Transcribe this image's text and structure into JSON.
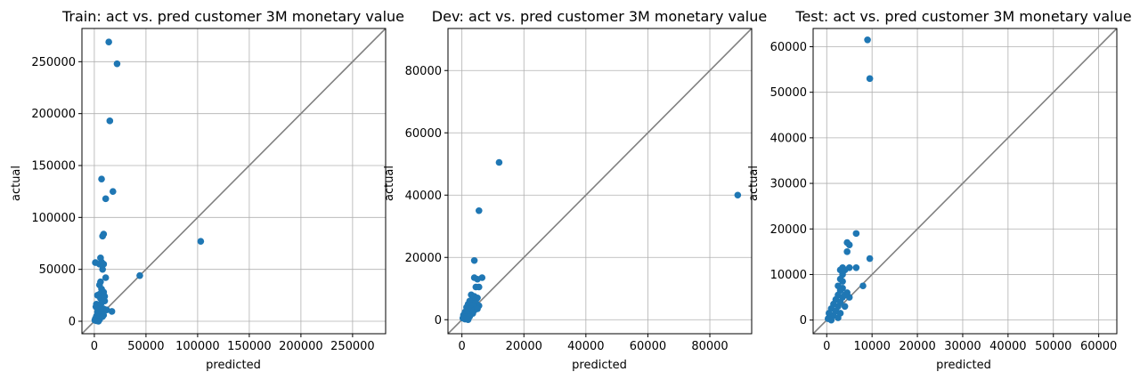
{
  "chart_data": [
    {
      "type": "scatter",
      "title": "Train: act vs. pred customer 3M monetary value",
      "xlabel": "predicted",
      "ylabel": "actual",
      "xlim": [
        -12000,
        282000
      ],
      "ylim": [
        -12000,
        282000
      ],
      "xticks": [
        0,
        50000,
        100000,
        150000,
        200000,
        250000
      ],
      "yticks": [
        0,
        50000,
        100000,
        150000,
        200000,
        250000
      ],
      "xtick_labels": [
        "0",
        "50000",
        "100000",
        "150000",
        "200000",
        "250000"
      ],
      "ytick_labels": [
        "0",
        "50000",
        "100000",
        "150000",
        "200000",
        "250000"
      ],
      "grid": true,
      "reference_line": "y = x",
      "color": "#1f77b4",
      "points": [
        [
          14000,
          269000
        ],
        [
          22000,
          248000
        ],
        [
          15000,
          193000
        ],
        [
          7000,
          137000
        ],
        [
          18000,
          125000
        ],
        [
          11000,
          118000
        ],
        [
          9000,
          84000
        ],
        [
          8000,
          82000
        ],
        [
          103000,
          77000
        ],
        [
          6000,
          61000
        ],
        [
          1000,
          56500
        ],
        [
          7000,
          57000
        ],
        [
          8000,
          55500
        ],
        [
          5000,
          55000
        ],
        [
          9000,
          55000
        ],
        [
          8000,
          50000
        ],
        [
          44000,
          44000
        ],
        [
          11000,
          42000
        ],
        [
          6000,
          38000
        ],
        [
          5000,
          35000
        ],
        [
          7000,
          31000
        ],
        [
          9000,
          28000
        ],
        [
          5000,
          26000
        ],
        [
          3000,
          25000
        ],
        [
          6000,
          22000
        ],
        [
          8000,
          20000
        ],
        [
          10000,
          19500
        ],
        [
          2000,
          16500
        ],
        [
          4000,
          15000
        ],
        [
          6000,
          13000
        ],
        [
          9000,
          12000
        ],
        [
          12000,
          11000
        ],
        [
          17000,
          9500
        ],
        [
          3000,
          9000
        ],
        [
          5000,
          8000
        ],
        [
          7000,
          7000
        ],
        [
          9000,
          6000
        ],
        [
          2000,
          5000
        ],
        [
          4000,
          4000
        ],
        [
          6000,
          3500
        ],
        [
          1000,
          2500
        ],
        [
          3000,
          2000
        ],
        [
          5000,
          1500
        ],
        [
          500,
          1000
        ],
        [
          2000,
          500
        ],
        [
          4000,
          0
        ],
        [
          8000,
          4500
        ],
        [
          1500,
          14000
        ],
        [
          6500,
          17000
        ],
        [
          10000,
          24000
        ]
      ]
    },
    {
      "type": "scatter",
      "title": "Dev: act vs. pred customer 3M monetary value",
      "xlabel": "predicted",
      "ylabel": "actual",
      "xlim": [
        -4500,
        93500
      ],
      "ylim": [
        -4500,
        93500
      ],
      "xticks": [
        0,
        20000,
        40000,
        60000,
        80000
      ],
      "yticks": [
        0,
        20000,
        40000,
        60000,
        80000
      ],
      "xtick_labels": [
        "0",
        "20000",
        "40000",
        "60000",
        "80000"
      ],
      "ytick_labels": [
        "0",
        "20000",
        "40000",
        "60000",
        "80000"
      ],
      "grid": true,
      "reference_line": "y = x",
      "color": "#1f77b4",
      "points": [
        [
          12000,
          50500
        ],
        [
          5500,
          35000
        ],
        [
          89000,
          40000
        ],
        [
          4000,
          19000
        ],
        [
          4000,
          13500
        ],
        [
          6500,
          13500
        ],
        [
          5000,
          13000
        ],
        [
          4500,
          10500
        ],
        [
          5500,
          10500
        ],
        [
          3000,
          8000
        ],
        [
          4000,
          7500
        ],
        [
          5000,
          7000
        ],
        [
          3500,
          6500
        ],
        [
          2500,
          6000
        ],
        [
          4500,
          5500
        ],
        [
          2000,
          5000
        ],
        [
          3500,
          4500
        ],
        [
          5500,
          4500
        ],
        [
          1500,
          4000
        ],
        [
          3000,
          3500
        ],
        [
          2500,
          3000
        ],
        [
          4000,
          3000
        ],
        [
          1000,
          2500
        ],
        [
          2000,
          2000
        ],
        [
          3500,
          2000
        ],
        [
          500,
          1500
        ],
        [
          1500,
          1000
        ],
        [
          2500,
          1000
        ],
        [
          300,
          500
        ],
        [
          1000,
          200
        ],
        [
          2000,
          0
        ],
        [
          5000,
          3500
        ]
      ]
    },
    {
      "type": "scatter",
      "title": "Test: act vs. pred customer 3M monetary value",
      "xlabel": "predicted",
      "ylabel": "actual",
      "xlim": [
        -3000,
        64000
      ],
      "ylim": [
        -3000,
        64000
      ],
      "xticks": [
        0,
        10000,
        20000,
        30000,
        40000,
        50000,
        60000
      ],
      "yticks": [
        0,
        10000,
        20000,
        30000,
        40000,
        50000,
        60000
      ],
      "xtick_labels": [
        "0",
        "10000",
        "20000",
        "30000",
        "40000",
        "50000",
        "60000"
      ],
      "ytick_labels": [
        "0",
        "10000",
        "20000",
        "30000",
        "40000",
        "50000",
        "60000"
      ],
      "grid": true,
      "reference_line": "y = x",
      "color": "#1f77b4",
      "points": [
        [
          9000,
          61500
        ],
        [
          9500,
          53000
        ],
        [
          6500,
          19000
        ],
        [
          4500,
          17000
        ],
        [
          5000,
          16500
        ],
        [
          4500,
          15000
        ],
        [
          9500,
          13500
        ],
        [
          3500,
          11500
        ],
        [
          5000,
          11500
        ],
        [
          6500,
          11500
        ],
        [
          3000,
          11000
        ],
        [
          4000,
          11000
        ],
        [
          3500,
          10000
        ],
        [
          3000,
          9000
        ],
        [
          3500,
          8500
        ],
        [
          8000,
          7500
        ],
        [
          2500,
          7500
        ],
        [
          3500,
          7000
        ],
        [
          3000,
          6500
        ],
        [
          4500,
          6000
        ],
        [
          2500,
          5500
        ],
        [
          3500,
          5000
        ],
        [
          2000,
          4500
        ],
        [
          3000,
          4000
        ],
        [
          1500,
          3500
        ],
        [
          2500,
          3000
        ],
        [
          4000,
          3000
        ],
        [
          1000,
          2500
        ],
        [
          2000,
          2000
        ],
        [
          3000,
          1500
        ],
        [
          500,
          1500
        ],
        [
          1500,
          1000
        ],
        [
          2500,
          500
        ],
        [
          300,
          300
        ],
        [
          1000,
          0
        ],
        [
          5000,
          5000
        ],
        [
          4000,
          5500
        ]
      ]
    }
  ]
}
